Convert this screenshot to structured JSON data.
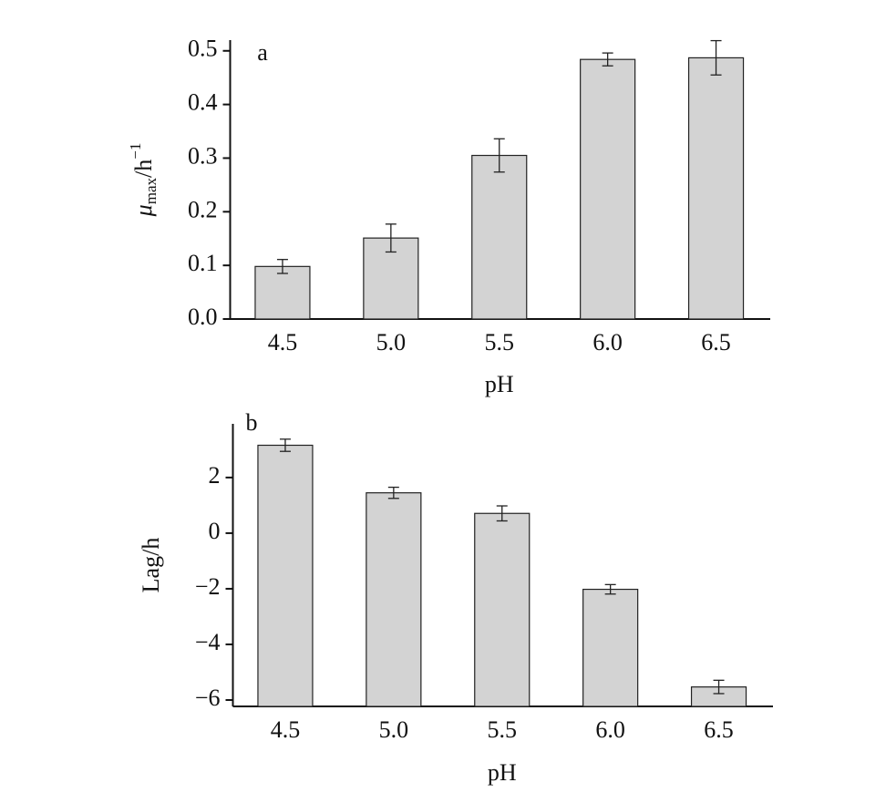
{
  "chart_data": [
    {
      "type": "bar",
      "annotation": "a",
      "xlabel": "pH",
      "ylabel": {
        "symbol": "μ",
        "subscript": "max",
        "unit": "/h",
        "superscript": "−1"
      },
      "categories": [
        "4.5",
        "5.0",
        "5.5",
        "6.0",
        "6.5"
      ],
      "values": [
        0.098,
        0.151,
        0.305,
        0.484,
        0.487
      ],
      "errors": [
        0.013,
        0.026,
        0.031,
        0.012,
        0.032
      ],
      "color": "#d3d3d3",
      "ylim": [
        0,
        0.52
      ],
      "yticks": [
        {
          "value": 0,
          "label": "0.0"
        },
        0.1,
        0.2,
        0.3,
        0.4,
        0.5
      ]
    },
    {
      "type": "bar",
      "annotation": "b",
      "xlabel": "pH",
      "ylabel": "Lag/h",
      "categories": [
        "4.5",
        "5.0",
        "5.5",
        "6.0",
        "6.5"
      ],
      "values": [
        3.16,
        1.45,
        0.71,
        -2.02,
        -5.53
      ],
      "errors": [
        0.22,
        0.2,
        0.27,
        0.17,
        0.24
      ],
      "color": "#d3d3d3",
      "ylim": [
        -6.23,
        3.93
      ],
      "yticks": [
        {
          "value": -6,
          "label": "−6"
        },
        {
          "value": -4,
          "label": "−4"
        },
        {
          "value": -2,
          "label": "−2"
        },
        0,
        2
      ]
    }
  ]
}
